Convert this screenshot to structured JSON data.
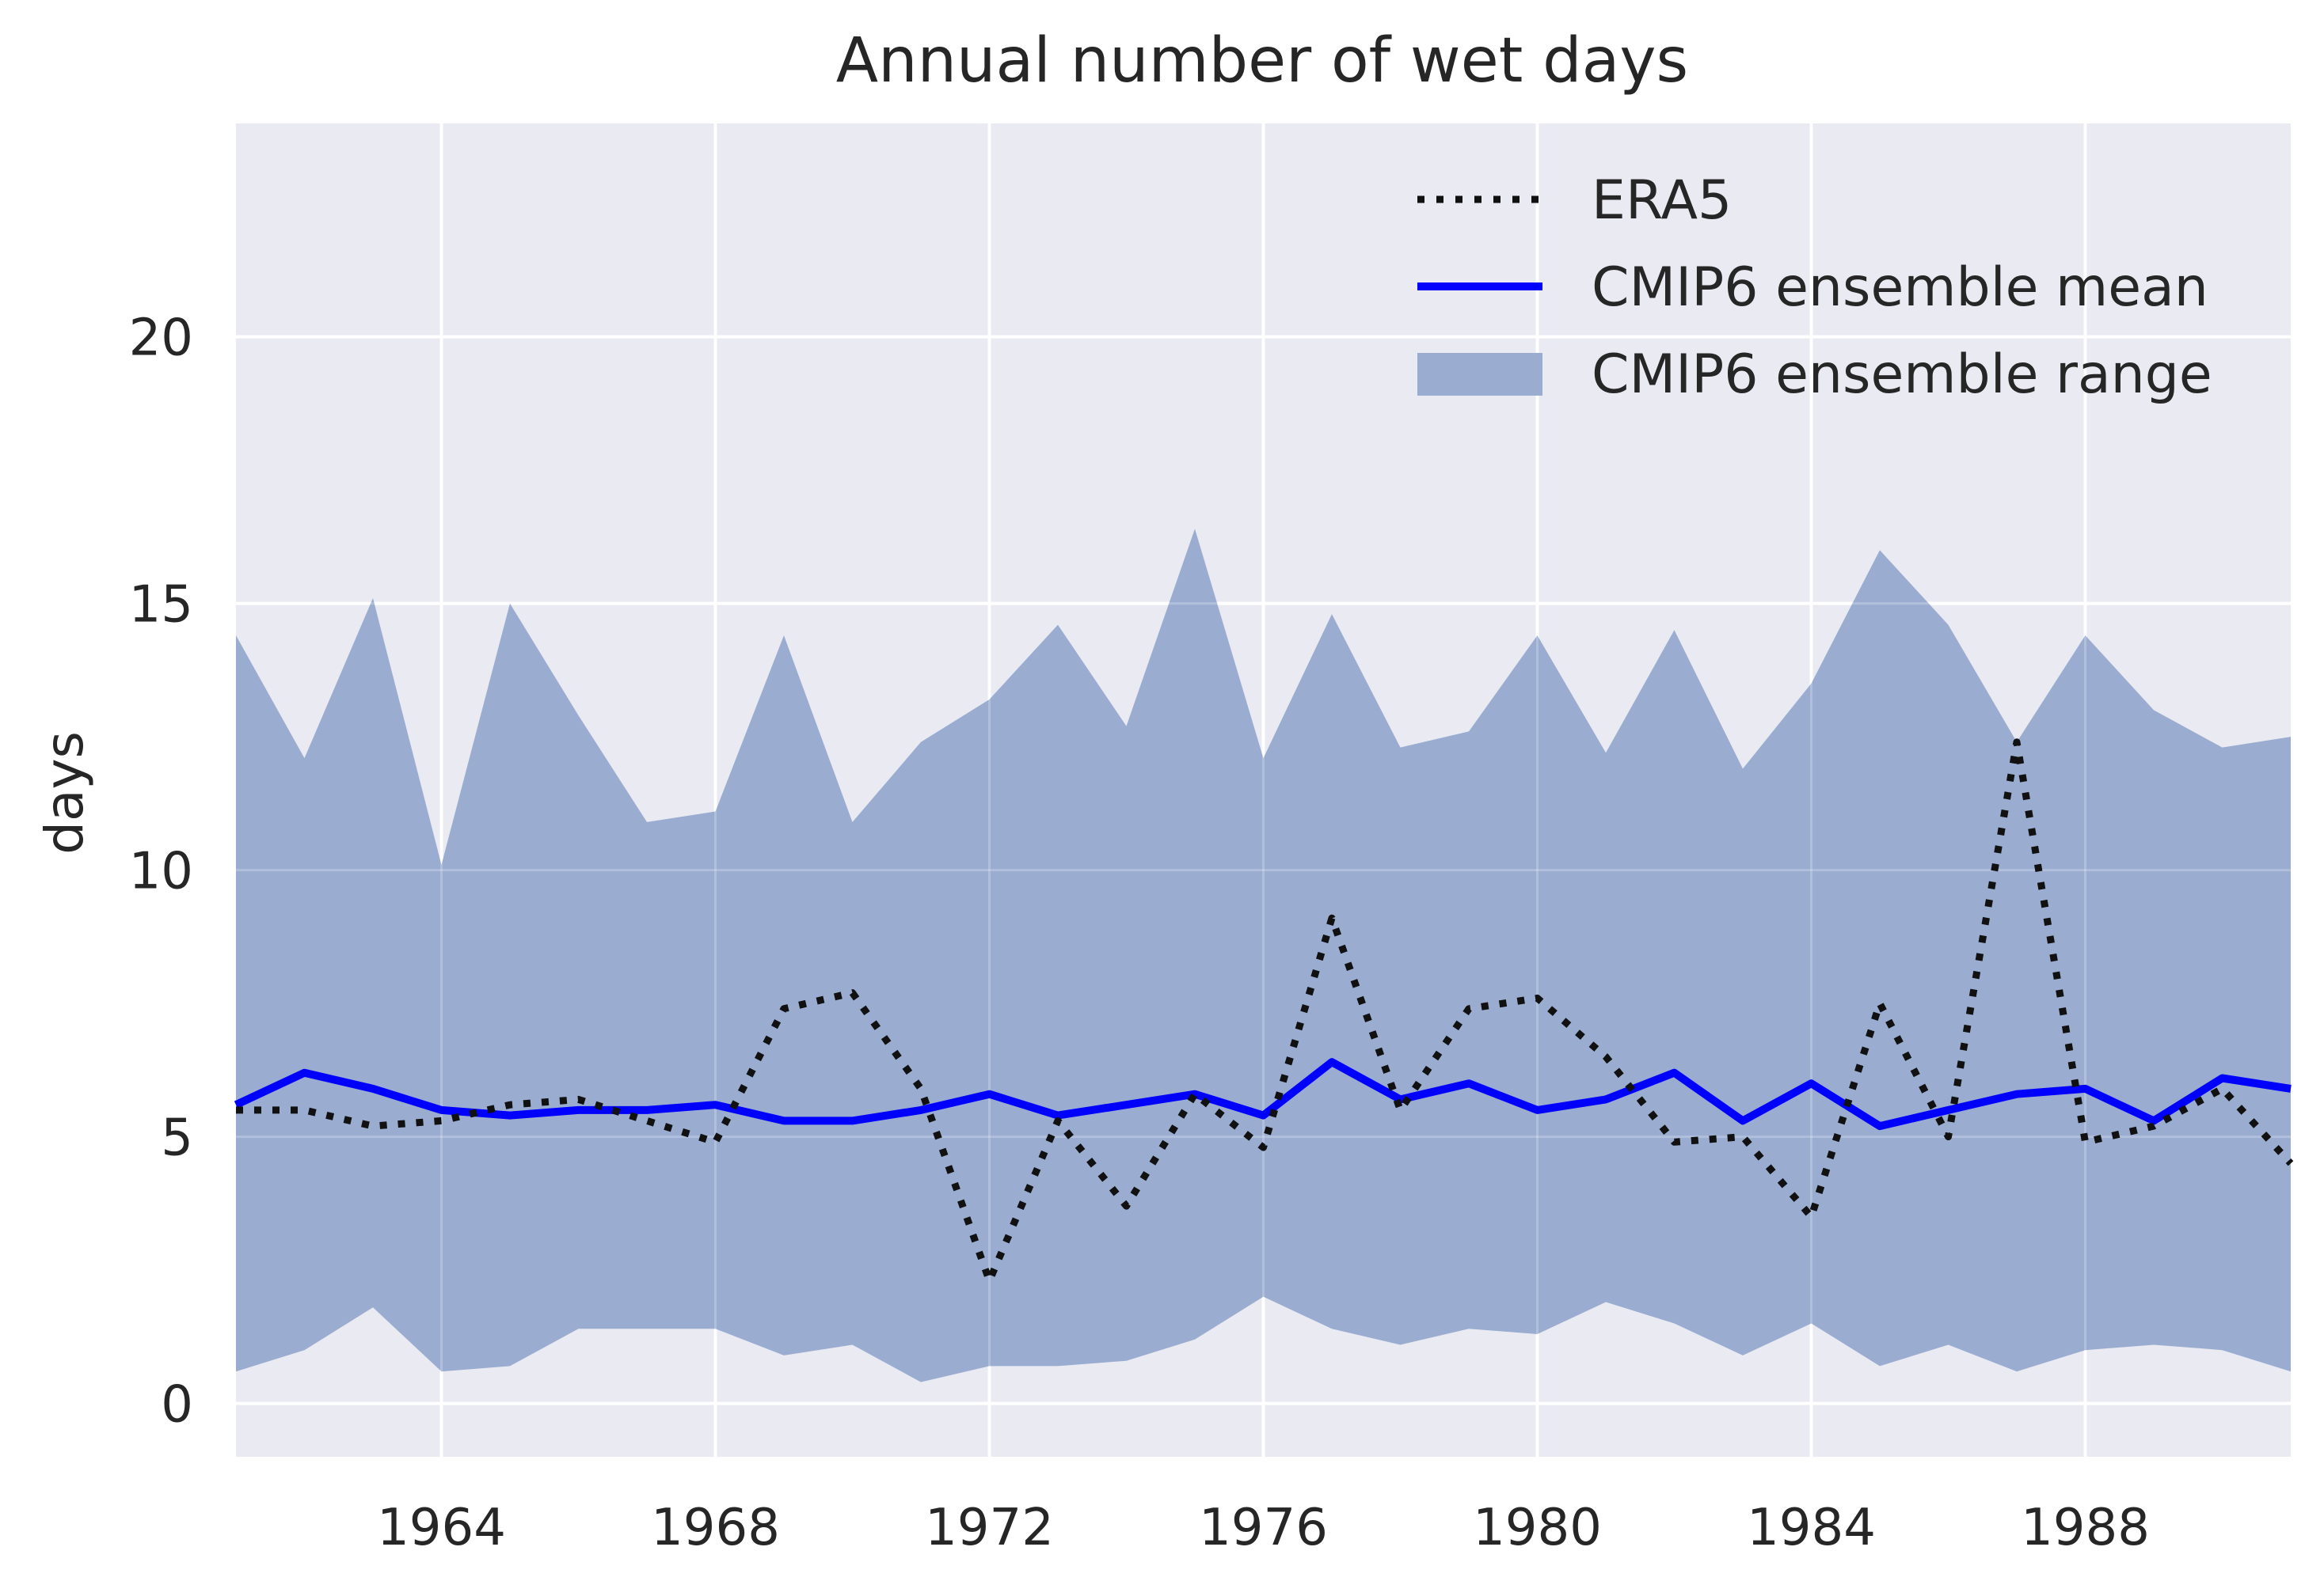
{
  "chart_data": {
    "type": "line",
    "title": "Annual number of wet days",
    "xlabel": "",
    "ylabel": "days",
    "x": [
      1961,
      1962,
      1963,
      1964,
      1965,
      1966,
      1967,
      1968,
      1969,
      1970,
      1971,
      1972,
      1973,
      1974,
      1975,
      1976,
      1977,
      1978,
      1979,
      1980,
      1981,
      1982,
      1983,
      1984,
      1985,
      1986,
      1987,
      1988,
      1989,
      1990,
      1991
    ],
    "xlim": [
      1961,
      1991
    ],
    "ylim": [
      -1,
      24
    ],
    "xticks": [
      1964,
      1968,
      1972,
      1976,
      1980,
      1984,
      1988
    ],
    "xtick_labels": [
      "1964",
      "1968",
      "1972",
      "1976",
      "1980",
      "1984",
      "1988"
    ],
    "yticks": [
      0,
      5,
      10,
      15,
      20
    ],
    "ytick_labels": [
      "0",
      "5",
      "10",
      "15",
      "20"
    ],
    "grid": true,
    "legend_position": "top-right",
    "series": [
      {
        "name": "ERA5",
        "style": "dotted",
        "color": "#111111",
        "values": [
          5.5,
          5.5,
          5.2,
          5.3,
          5.6,
          5.7,
          5.3,
          4.9,
          7.4,
          7.7,
          5.9,
          2.3,
          5.3,
          3.7,
          5.8,
          4.8,
          9.1,
          5.5,
          7.4,
          7.6,
          6.5,
          4.9,
          5.0,
          3.5,
          7.5,
          5.0,
          12.4,
          4.9,
          5.2,
          5.9,
          4.5
        ]
      },
      {
        "name": "CMIP6 ensemble mean",
        "style": "solid",
        "color": "#0000ff",
        "values": [
          5.6,
          6.2,
          5.9,
          5.5,
          5.4,
          5.5,
          5.5,
          5.6,
          5.3,
          5.3,
          5.5,
          5.8,
          5.4,
          5.6,
          5.8,
          5.4,
          6.4,
          5.7,
          6.0,
          5.5,
          5.7,
          6.2,
          5.3,
          6.0,
          5.2,
          5.5,
          5.8,
          5.9,
          5.3,
          6.1,
          5.9
        ]
      },
      {
        "name": "CMIP6 ensemble range",
        "style": "band",
        "color": "#9aadd1",
        "upper": [
          14.4,
          12.1,
          15.1,
          10.1,
          15.0,
          12.9,
          10.9,
          11.1,
          14.4,
          10.9,
          12.4,
          13.2,
          14.6,
          12.7,
          16.4,
          12.1,
          14.8,
          12.3,
          12.6,
          14.4,
          12.2,
          14.5,
          11.9,
          13.5,
          16.0,
          14.6,
          12.4,
          14.4,
          13.0,
          12.3,
          12.5
        ],
        "lower": [
          0.6,
          1.0,
          1.8,
          0.6,
          0.7,
          1.4,
          1.4,
          1.4,
          0.9,
          1.1,
          0.4,
          0.7,
          0.7,
          0.8,
          1.2,
          2.0,
          1.4,
          1.1,
          1.4,
          1.3,
          1.9,
          1.5,
          0.9,
          1.5,
          0.7,
          1.1,
          0.6,
          1.0,
          1.1,
          1.0,
          0.6
        ]
      }
    ]
  },
  "colors": {
    "plot_background": "#eaeaf2",
    "grid": "#ffffff",
    "band": "#9aadd1",
    "mean_line": "#0000ff",
    "era5_line": "#111111",
    "text": "#262626"
  }
}
